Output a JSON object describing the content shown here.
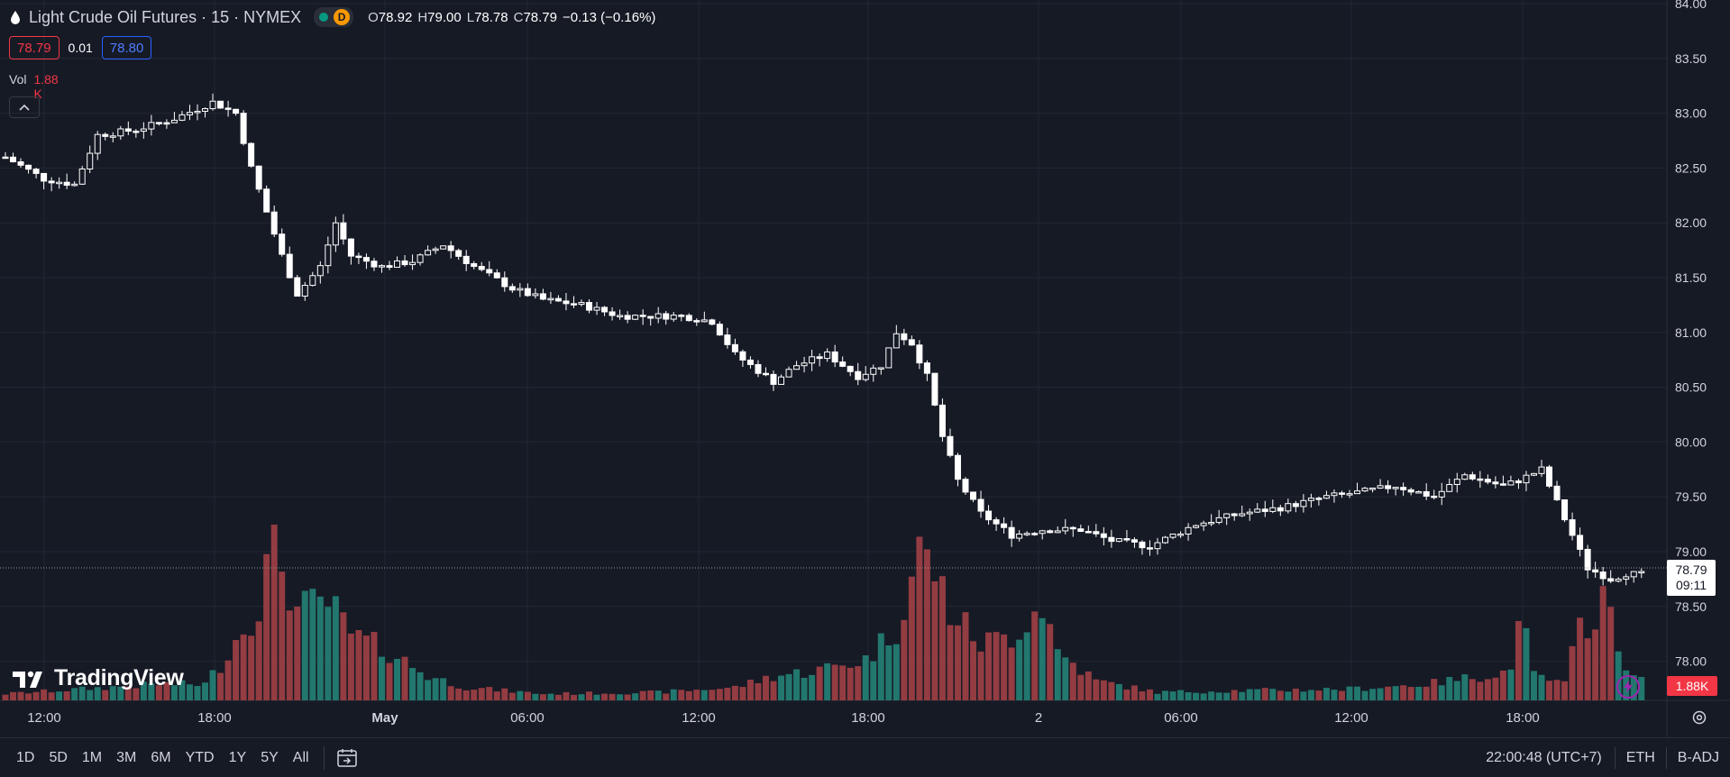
{
  "legend": {
    "symbol": "Light Crude Oil Futures · 15 · NYMEX",
    "delayed_badge": "D",
    "open_label": "O",
    "open": "78.92",
    "high_label": "H",
    "high": "79.00",
    "low_label": "L",
    "low": "78.78",
    "close_label": "C",
    "close": "78.79",
    "change": "−0.13 (−0.16%)",
    "bid": "78.79",
    "spread": "0.01",
    "ask": "78.80",
    "vol_label": "Vol",
    "vol_value": "1.88 K"
  },
  "watermark": "TradingView",
  "price_scale": {
    "labels": [
      "84.00",
      "83.50",
      "83.00",
      "82.50",
      "82.00",
      "81.50",
      "81.00",
      "80.50",
      "80.00",
      "79.50",
      "79.00",
      "78.50",
      "78.00"
    ],
    "last_price": "78.79",
    "countdown": "09:11",
    "volume_tag": "1.88K"
  },
  "time_axis": {
    "labels": [
      "12:00",
      "18:00",
      "May",
      "06:00",
      "12:00",
      "18:00",
      "2",
      "06:00",
      "12:00",
      "18:00"
    ]
  },
  "bottom_bar": {
    "ranges": [
      "1D",
      "5D",
      "1M",
      "3M",
      "6M",
      "YTD",
      "1Y",
      "5Y",
      "All"
    ],
    "clock": "22:00:48 (UTC+7)",
    "session": "ETH",
    "adjustment": "B-ADJ"
  },
  "colors": {
    "background": "#161a25",
    "grid": "#232733",
    "candle": "#ffffff",
    "volume_up": "#22776e",
    "volume_down": "#933c42",
    "down": "#f23645",
    "ask_blue": "#2962ff",
    "badge_orange": "#ff9800",
    "status_green": "#089981"
  },
  "icons": {
    "symbol": "oil-drop-icon",
    "collapse": "chevron-up-icon",
    "goto": "calendar-goto-icon",
    "lightning": "lightning-icon",
    "settings": "gear-icon"
  },
  "chart_data": {
    "type": "candlestick",
    "price_range": [
      77.6,
      84.0
    ],
    "close_path": [
      [
        0,
        82.6
      ],
      [
        5,
        82.4
      ],
      [
        9,
        82.35
      ],
      [
        12,
        82.8
      ],
      [
        17,
        82.85
      ],
      [
        22,
        82.95
      ],
      [
        27,
        83.1
      ],
      [
        30,
        83.0
      ],
      [
        32,
        82.5
      ],
      [
        34,
        82.1
      ],
      [
        36,
        81.7
      ],
      [
        38,
        81.35
      ],
      [
        41,
        81.6
      ],
      [
        43,
        82.0
      ],
      [
        45,
        81.7
      ],
      [
        49,
        81.6
      ],
      [
        53,
        81.65
      ],
      [
        57,
        81.8
      ],
      [
        61,
        81.6
      ],
      [
        66,
        81.4
      ],
      [
        70,
        81.3
      ],
      [
        75,
        81.25
      ],
      [
        80,
        81.15
      ],
      [
        84,
        81.15
      ],
      [
        88,
        81.15
      ],
      [
        92,
        81.1
      ],
      [
        95,
        80.8
      ],
      [
        100,
        80.55
      ],
      [
        103,
        80.7
      ],
      [
        107,
        80.8
      ],
      [
        111,
        80.6
      ],
      [
        114,
        80.7
      ],
      [
        116,
        81.0
      ],
      [
        118,
        80.9
      ],
      [
        120,
        80.6
      ],
      [
        122,
        80.05
      ],
      [
        124,
        79.65
      ],
      [
        127,
        79.35
      ],
      [
        131,
        79.15
      ],
      [
        135,
        79.2
      ],
      [
        140,
        79.2
      ],
      [
        144,
        79.1
      ],
      [
        149,
        79.05
      ],
      [
        155,
        79.25
      ],
      [
        161,
        79.35
      ],
      [
        166,
        79.4
      ],
      [
        172,
        79.5
      ],
      [
        177,
        79.55
      ],
      [
        181,
        79.6
      ],
      [
        186,
        79.5
      ],
      [
        190,
        79.7
      ],
      [
        195,
        79.6
      ],
      [
        197,
        79.65
      ],
      [
        200,
        79.75
      ],
      [
        203,
        79.3
      ],
      [
        206,
        78.85
      ],
      [
        209,
        78.75
      ],
      [
        211,
        78.8
      ],
      [
        213,
        78.79
      ]
    ],
    "volume_path": [
      [
        0,
        0.04
      ],
      [
        20,
        0.1
      ],
      [
        26,
        0.1
      ],
      [
        28,
        0.22
      ],
      [
        31,
        0.45
      ],
      [
        33,
        0.6
      ],
      [
        35,
        1.0
      ],
      [
        38,
        0.55
      ],
      [
        42,
        0.6
      ],
      [
        45,
        0.4
      ],
      [
        50,
        0.3
      ],
      [
        55,
        0.15
      ],
      [
        60,
        0.08
      ],
      [
        70,
        0.04
      ],
      [
        85,
        0.05
      ],
      [
        95,
        0.08
      ],
      [
        100,
        0.15
      ],
      [
        105,
        0.18
      ],
      [
        112,
        0.25
      ],
      [
        116,
        0.45
      ],
      [
        119,
        0.92
      ],
      [
        121,
        0.8
      ],
      [
        123,
        0.55
      ],
      [
        127,
        0.35
      ],
      [
        131,
        0.4
      ],
      [
        135,
        0.6
      ],
      [
        137,
        0.3
      ],
      [
        142,
        0.12
      ],
      [
        150,
        0.05
      ],
      [
        160,
        0.06
      ],
      [
        175,
        0.07
      ],
      [
        185,
        0.1
      ],
      [
        192,
        0.15
      ],
      [
        196,
        0.18
      ],
      [
        197,
        0.6
      ],
      [
        199,
        0.15
      ],
      [
        203,
        0.1
      ],
      [
        205,
        0.45
      ],
      [
        207,
        0.55
      ],
      [
        208,
        0.66
      ],
      [
        210,
        0.3
      ],
      [
        213,
        0.12
      ]
    ]
  }
}
